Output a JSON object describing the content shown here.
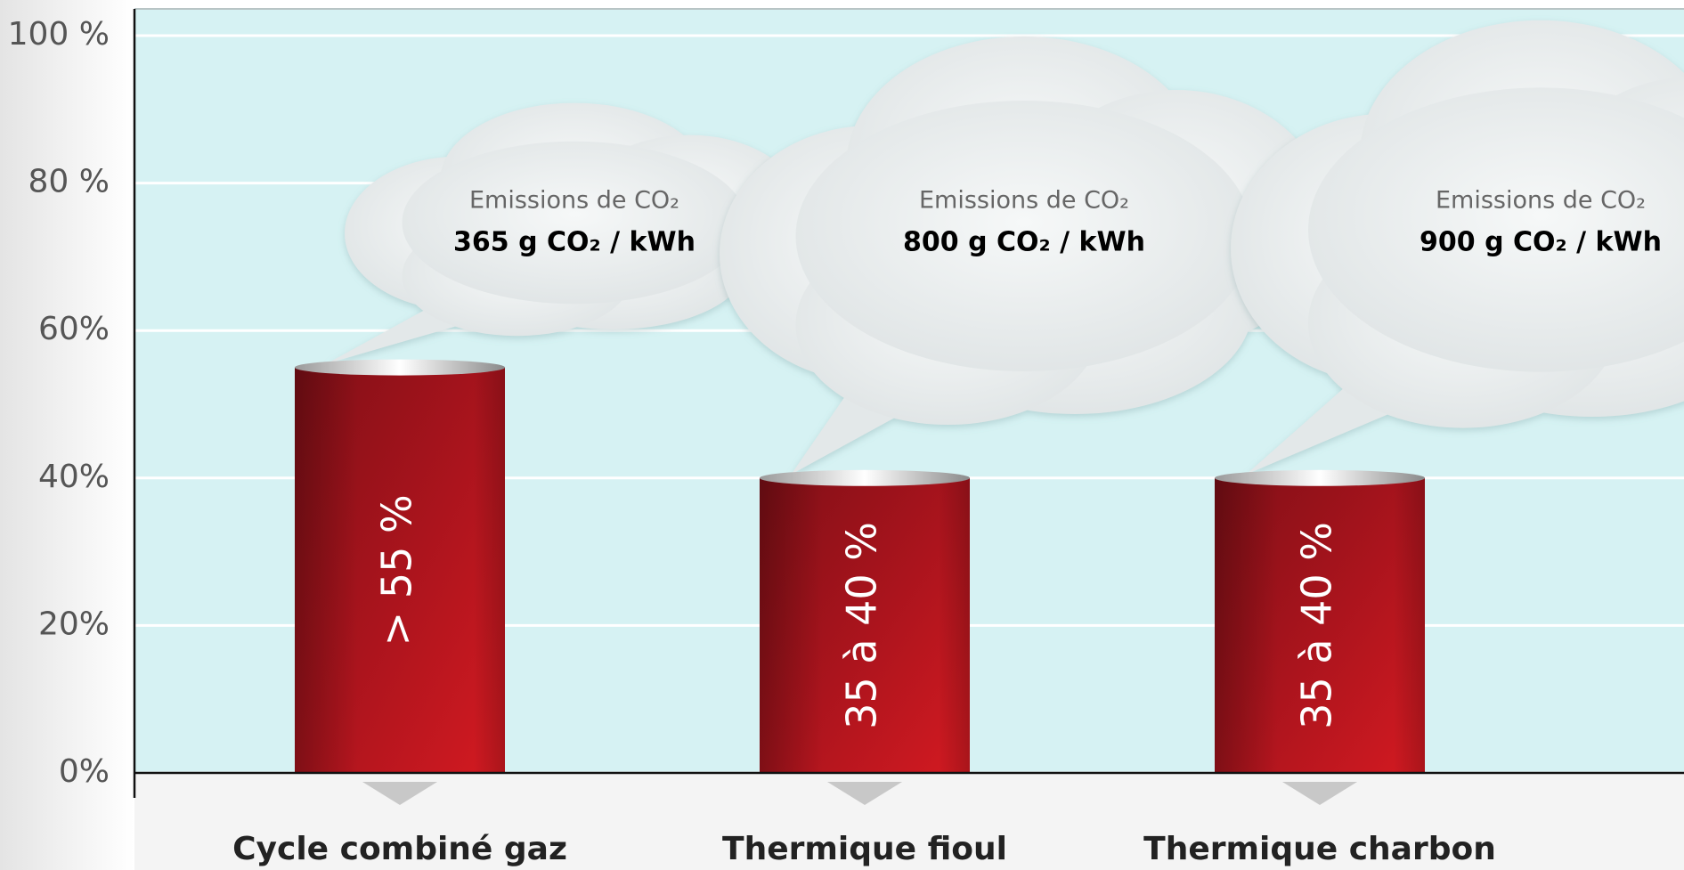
{
  "chart_data": {
    "type": "bar",
    "categories": [
      "Cycle combiné gaz",
      "Thermique fioul",
      "Thermique charbon"
    ],
    "values": [
      55,
      40,
      40
    ],
    "value_labels": [
      "> 55 %",
      "35 à 40 %",
      "35 à 40 %"
    ],
    "color": "#b5121b",
    "ylim": [
      0,
      100
    ],
    "yticks": [
      {
        "value": 0,
        "label": "0%"
      },
      {
        "value": 20,
        "label": "20%"
      },
      {
        "value": 40,
        "label": "40%"
      },
      {
        "value": 60,
        "label": "60%"
      },
      {
        "value": 80,
        "label": "80 %"
      },
      {
        "value": 100,
        "label": "100 %"
      }
    ],
    "grid": true,
    "annotations": [
      {
        "title": "Emissions de CO₂",
        "text": "365 g CO₂ / kWh"
      },
      {
        "title": "Emissions de CO₂",
        "text": "800 g CO₂ / kWh"
      },
      {
        "title": "Emissions de CO₂",
        "text": "900 g CO₂ / kWh"
      }
    ]
  }
}
